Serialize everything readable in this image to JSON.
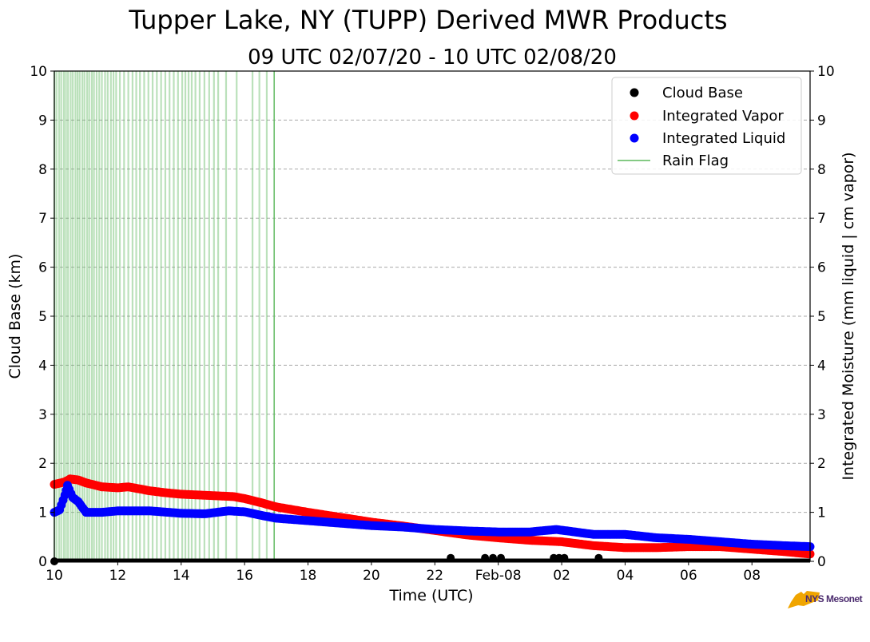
{
  "title": "Tupper Lake, NY (TUPP) Derived MWR Products",
  "subtitle": "09 UTC 02/07/20 - 10 UTC 02/08/20",
  "logo_text": "NYS Mesonet",
  "colors": {
    "cloud_base": "#000000",
    "integrated_vapor": "#ff0000",
    "integrated_liquid": "#0000ff",
    "rain_flag": "#5cb85c",
    "grid": "#aaaaaa",
    "logo_state": "#f0a500",
    "logo_text": "#4b2b6e"
  },
  "chart_data": {
    "type": "scatter",
    "xlabel": "Time (UTC)",
    "ylabel_left": "Cloud Base (km)",
    "ylabel_right": "Integrated Moisture (mm liquid | cm vapor)",
    "xlim": [
      "2020-02-07T10:00",
      "2020-02-08T09:50"
    ],
    "ylim": [
      0,
      10
    ],
    "y_ticks": [
      "0",
      "1",
      "2",
      "3",
      "4",
      "5",
      "6",
      "7",
      "8",
      "9",
      "10"
    ],
    "x_ticks": [
      {
        "t": "2020-02-07T10:00",
        "label": "10"
      },
      {
        "t": "2020-02-07T12:00",
        "label": "12"
      },
      {
        "t": "2020-02-07T14:00",
        "label": "14"
      },
      {
        "t": "2020-02-07T16:00",
        "label": "16"
      },
      {
        "t": "2020-02-07T18:00",
        "label": "18"
      },
      {
        "t": "2020-02-07T20:00",
        "label": "20"
      },
      {
        "t": "2020-02-07T22:00",
        "label": "22"
      },
      {
        "t": "2020-02-08T00:00",
        "label": "Feb-08"
      },
      {
        "t": "2020-02-08T02:00",
        "label": "02"
      },
      {
        "t": "2020-02-08T04:00",
        "label": "04"
      },
      {
        "t": "2020-02-08T06:00",
        "label": "06"
      },
      {
        "t": "2020-02-08T08:00",
        "label": "08"
      }
    ],
    "grid": "horizontal dashed",
    "legend": {
      "placement": "top-right",
      "entries": [
        "Cloud Base",
        "Integrated Vapor",
        "Integrated Liquid",
        "Rain Flag"
      ]
    },
    "series": [
      {
        "name": "Integrated Vapor",
        "marker": "dot",
        "points": [
          [
            "2020-02-07T10:00",
            1.57
          ],
          [
            "2020-02-07T10:20",
            1.62
          ],
          [
            "2020-02-07T10:30",
            1.68
          ],
          [
            "2020-02-07T10:45",
            1.66
          ],
          [
            "2020-02-07T11:00",
            1.6
          ],
          [
            "2020-02-07T11:30",
            1.52
          ],
          [
            "2020-02-07T12:00",
            1.5
          ],
          [
            "2020-02-07T12:20",
            1.52
          ],
          [
            "2020-02-07T13:00",
            1.44
          ],
          [
            "2020-02-07T13:30",
            1.4
          ],
          [
            "2020-02-07T14:00",
            1.37
          ],
          [
            "2020-02-07T15:00",
            1.34
          ],
          [
            "2020-02-07T15:40",
            1.32
          ],
          [
            "2020-02-07T16:00",
            1.28
          ],
          [
            "2020-02-07T16:30",
            1.2
          ],
          [
            "2020-02-07T17:00",
            1.11
          ],
          [
            "2020-02-07T18:00",
            1.0
          ],
          [
            "2020-02-07T19:00",
            0.9
          ],
          [
            "2020-02-07T20:00",
            0.8
          ],
          [
            "2020-02-07T21:00",
            0.72
          ],
          [
            "2020-02-07T22:00",
            0.63
          ],
          [
            "2020-02-07T23:00",
            0.54
          ],
          [
            "2020-02-08T00:00",
            0.48
          ],
          [
            "2020-02-08T01:00",
            0.43
          ],
          [
            "2020-02-08T02:00",
            0.4
          ],
          [
            "2020-02-08T03:00",
            0.32
          ],
          [
            "2020-02-08T04:00",
            0.28
          ],
          [
            "2020-02-08T05:00",
            0.28
          ],
          [
            "2020-02-08T06:00",
            0.3
          ],
          [
            "2020-02-08T07:00",
            0.3
          ],
          [
            "2020-02-08T08:00",
            0.25
          ],
          [
            "2020-02-08T09:00",
            0.2
          ],
          [
            "2020-02-08T09:50",
            0.15
          ]
        ]
      },
      {
        "name": "Integrated Liquid",
        "marker": "dot",
        "points": [
          [
            "2020-02-07T10:00",
            1.0
          ],
          [
            "2020-02-07T10:10",
            1.05
          ],
          [
            "2020-02-07T10:20",
            1.35
          ],
          [
            "2020-02-07T10:25",
            1.55
          ],
          [
            "2020-02-07T10:35",
            1.3
          ],
          [
            "2020-02-07T10:45",
            1.22
          ],
          [
            "2020-02-07T11:00",
            1.0
          ],
          [
            "2020-02-07T11:30",
            1.0
          ],
          [
            "2020-02-07T12:00",
            1.03
          ],
          [
            "2020-02-07T13:00",
            1.03
          ],
          [
            "2020-02-07T14:00",
            0.98
          ],
          [
            "2020-02-07T14:45",
            0.97
          ],
          [
            "2020-02-07T15:30",
            1.03
          ],
          [
            "2020-02-07T16:00",
            1.01
          ],
          [
            "2020-02-07T16:40",
            0.92
          ],
          [
            "2020-02-07T17:00",
            0.88
          ],
          [
            "2020-02-07T18:00",
            0.83
          ],
          [
            "2020-02-07T19:00",
            0.78
          ],
          [
            "2020-02-07T20:00",
            0.73
          ],
          [
            "2020-02-07T21:00",
            0.7
          ],
          [
            "2020-02-07T22:00",
            0.65
          ],
          [
            "2020-02-07T23:00",
            0.62
          ],
          [
            "2020-02-08T00:00",
            0.6
          ],
          [
            "2020-02-08T01:00",
            0.6
          ],
          [
            "2020-02-08T01:50",
            0.65
          ],
          [
            "2020-02-08T03:00",
            0.55
          ],
          [
            "2020-02-08T04:00",
            0.55
          ],
          [
            "2020-02-08T05:00",
            0.48
          ],
          [
            "2020-02-08T06:00",
            0.45
          ],
          [
            "2020-02-08T07:00",
            0.4
          ],
          [
            "2020-02-08T08:00",
            0.35
          ],
          [
            "2020-02-08T09:00",
            0.32
          ],
          [
            "2020-02-08T09:50",
            0.3
          ]
        ]
      },
      {
        "name": "Cloud Base",
        "marker": "dot",
        "points": [
          [
            "2020-02-07T10:00",
            0.0
          ],
          [
            "2020-02-07T22:30",
            0.07
          ],
          [
            "2020-02-07T23:35",
            0.07
          ],
          [
            "2020-02-07T23:50",
            0.07
          ],
          [
            "2020-02-08T00:05",
            0.07
          ],
          [
            "2020-02-08T01:45",
            0.07
          ],
          [
            "2020-02-08T01:55",
            0.07
          ],
          [
            "2020-02-08T02:05",
            0.07
          ],
          [
            "2020-02-08T03:10",
            0.07
          ]
        ],
        "baseline_range": [
          "2020-02-07T10:00",
          "2020-02-08T09:50"
        ]
      },
      {
        "name": "Rain Flag",
        "marker": "vertical line",
        "times": [
          "2020-02-07T10:00",
          "2020-02-07T10:04",
          "2020-02-07T10:09",
          "2020-02-07T10:13",
          "2020-02-07T10:18",
          "2020-02-07T10:22",
          "2020-02-07T10:26",
          "2020-02-07T10:31",
          "2020-02-07T10:35",
          "2020-02-07T10:40",
          "2020-02-07T10:44",
          "2020-02-07T10:48",
          "2020-02-07T10:53",
          "2020-02-07T10:57",
          "2020-02-07T11:02",
          "2020-02-07T11:06",
          "2020-02-07T11:11",
          "2020-02-07T11:15",
          "2020-02-07T11:20",
          "2020-02-07T11:25",
          "2020-02-07T11:30",
          "2020-02-07T11:36",
          "2020-02-07T11:41",
          "2020-02-07T11:47",
          "2020-02-07T11:52",
          "2020-02-07T11:57",
          "2020-02-07T12:04",
          "2020-02-07T12:12",
          "2020-02-07T12:20",
          "2020-02-07T12:28",
          "2020-02-07T12:35",
          "2020-02-07T12:42",
          "2020-02-07T12:50",
          "2020-02-07T12:58",
          "2020-02-07T13:06",
          "2020-02-07T13:14",
          "2020-02-07T13:22",
          "2020-02-07T13:30",
          "2020-02-07T13:38",
          "2020-02-07T13:46",
          "2020-02-07T13:54",
          "2020-02-07T14:02",
          "2020-02-07T14:08",
          "2020-02-07T14:14",
          "2020-02-07T14:20",
          "2020-02-07T14:27",
          "2020-02-07T14:35",
          "2020-02-07T14:44",
          "2020-02-07T14:53",
          "2020-02-07T15:02",
          "2020-02-07T15:10",
          "2020-02-07T15:25",
          "2020-02-07T15:45",
          "2020-02-07T16:15",
          "2020-02-07T16:28",
          "2020-02-07T16:42",
          "2020-02-07T16:56"
        ]
      }
    ]
  }
}
